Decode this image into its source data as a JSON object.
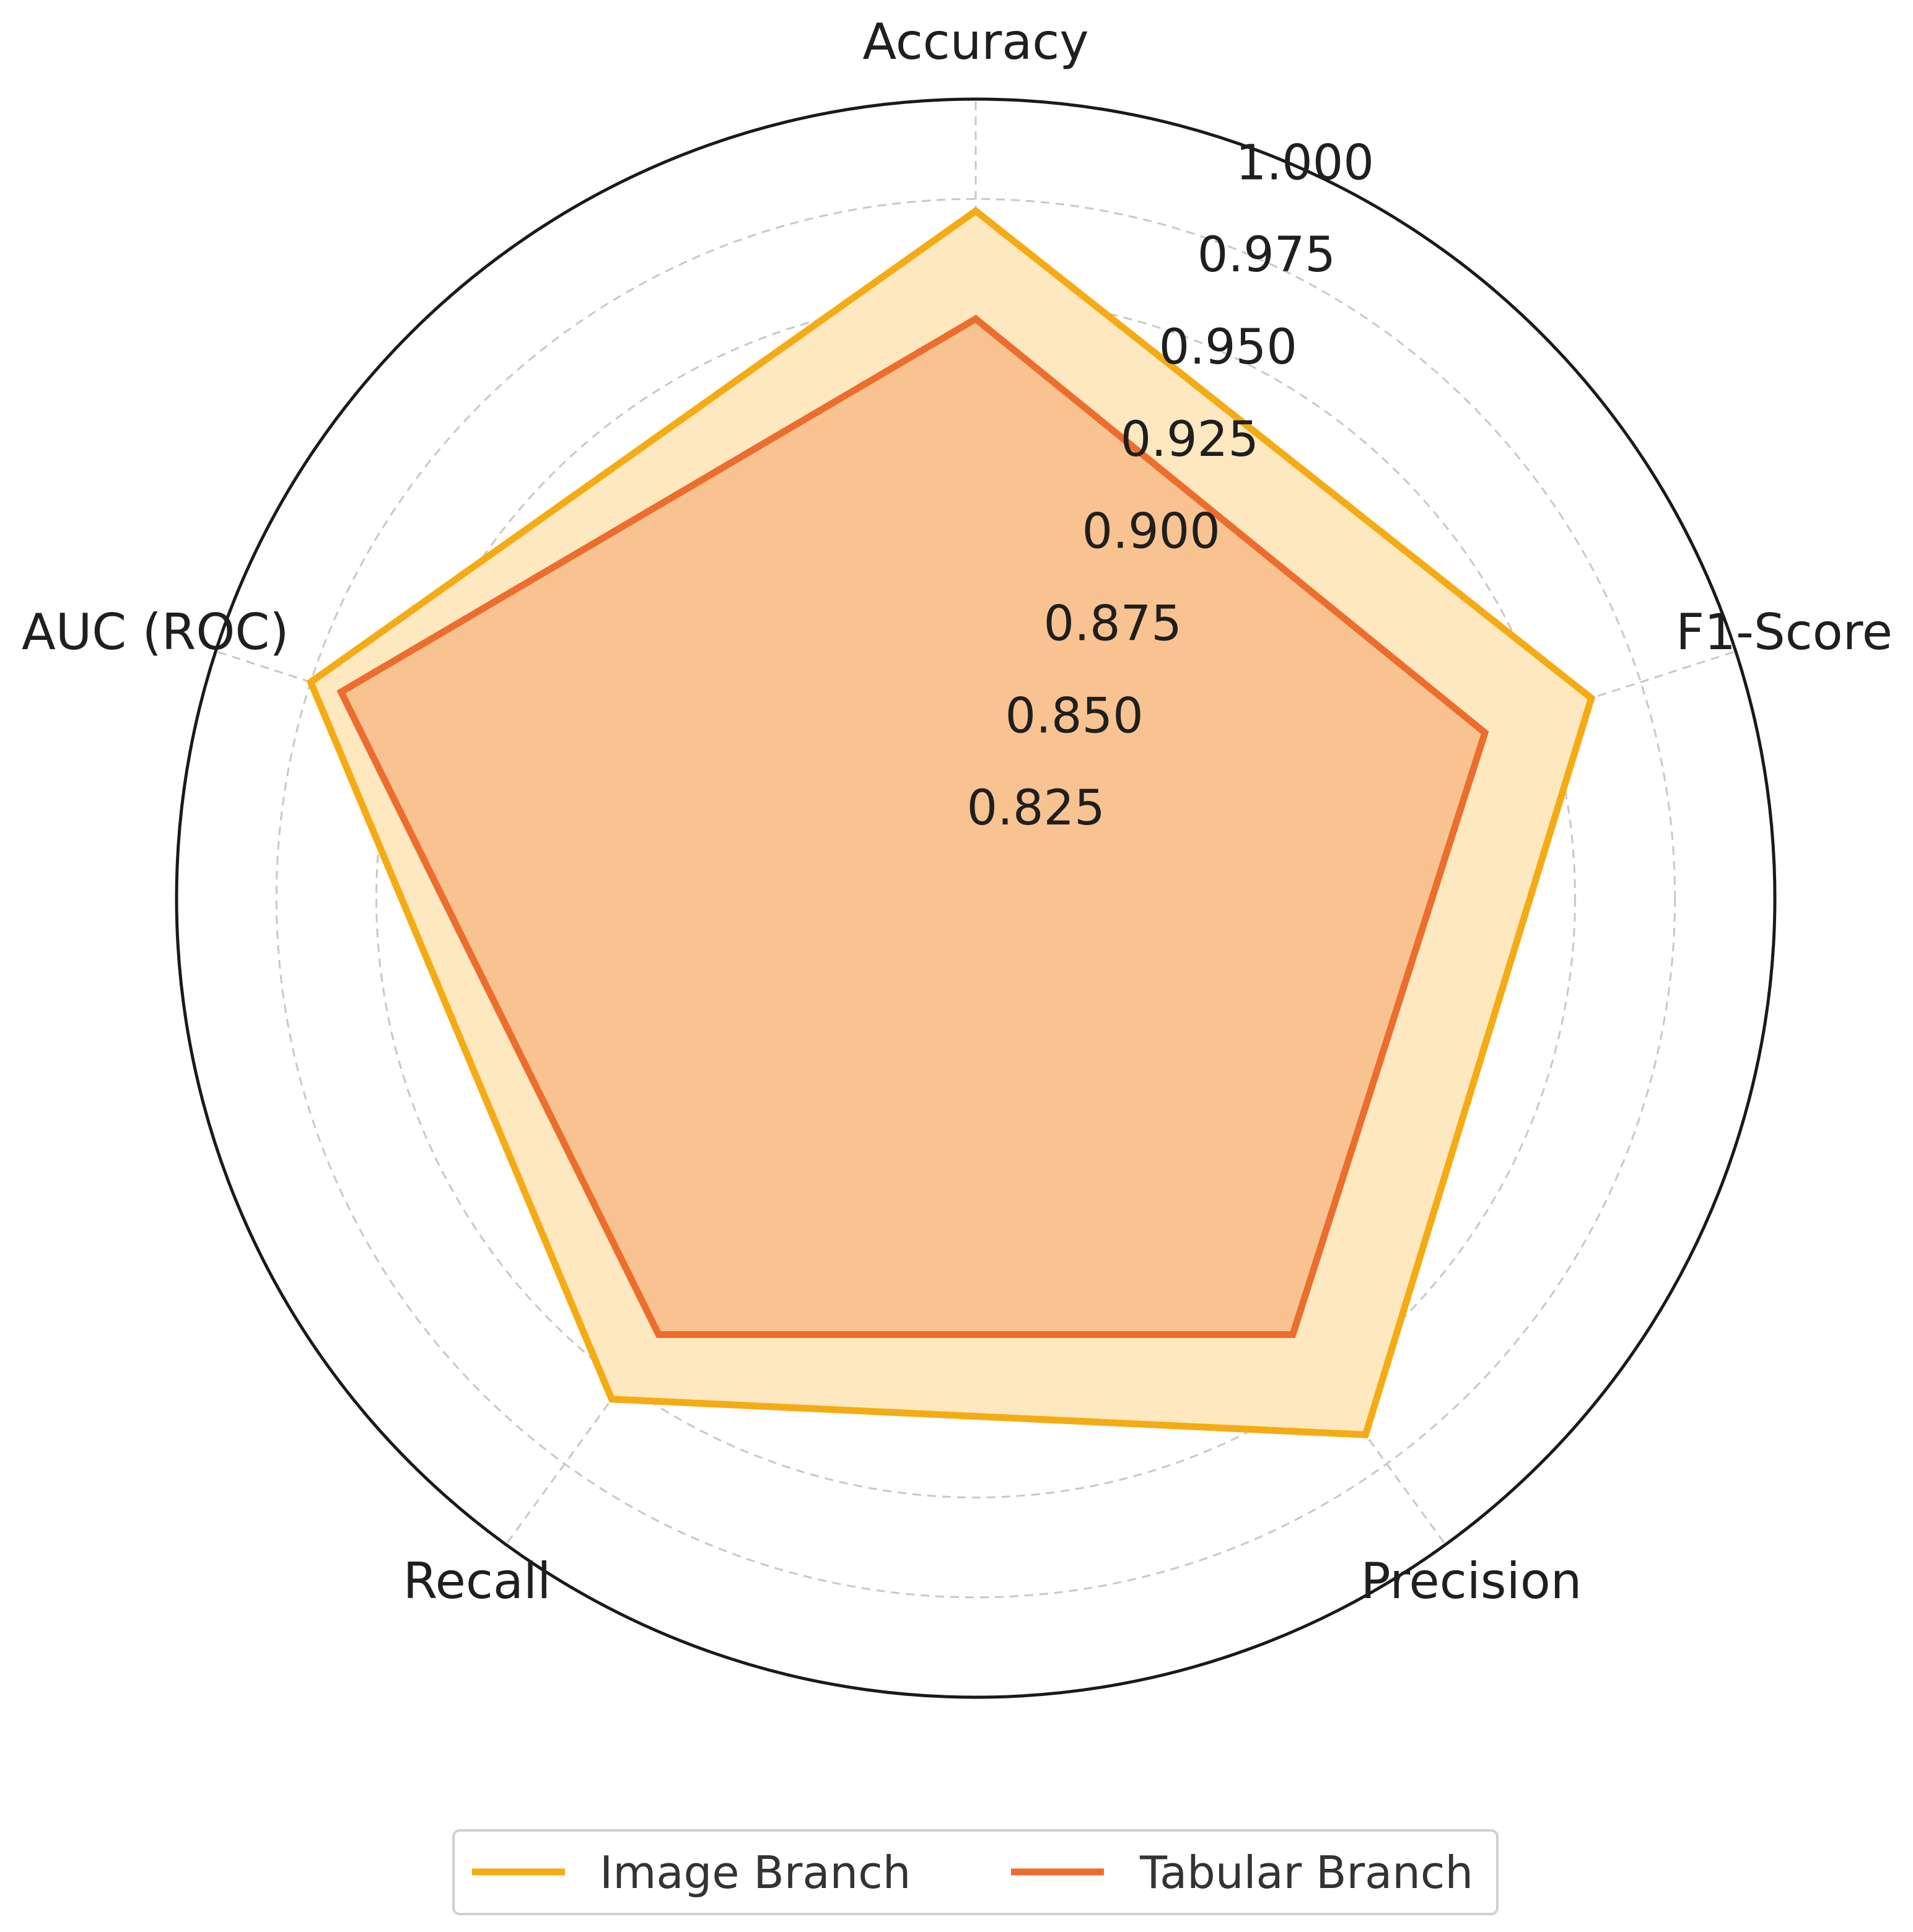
{
  "chart_data": {
    "type": "radar",
    "axes": [
      "Accuracy",
      "F1-Score",
      "Precision",
      "Recall",
      "AUC (ROC)"
    ],
    "r_ticks": [
      "0.825",
      "0.850",
      "0.875",
      "0.900",
      "0.925",
      "0.950",
      "0.975",
      "1.000"
    ],
    "r_min": 0.8,
    "r_max": 1.0,
    "grid": true,
    "legend_position": "bottom-center",
    "series": [
      {
        "name": "Image Branch",
        "values": [
          0.972,
          0.962,
          0.966,
          0.955,
          0.975
        ],
        "color": "#F5AB13",
        "fill": "#FDE8C0"
      },
      {
        "name": "Tabular Branch",
        "values": [
          0.945,
          0.934,
          0.935,
          0.935,
          0.967
        ],
        "color": "#EC6D2D",
        "fill": "#F8C391"
      }
    ]
  }
}
